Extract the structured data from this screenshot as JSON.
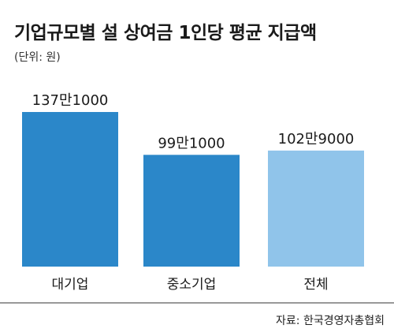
{
  "chart_data": {
    "type": "bar",
    "title": "기업규모별 설 상여금 1인당 평균 지급액",
    "subtitle": "(단위: 원)",
    "categories": [
      "대기업",
      "중소기업",
      "전체"
    ],
    "values": [
      1371000,
      991000,
      1029000
    ],
    "value_labels": [
      "137만1000",
      "99만1000",
      "102만9000"
    ],
    "colors": [
      "#2b87c9",
      "#2b87c9",
      "#90c4ea"
    ],
    "source": "자료: 한국경영자총협회",
    "grid": false,
    "legend": "none",
    "ylim": [
      0,
      1371000
    ]
  }
}
